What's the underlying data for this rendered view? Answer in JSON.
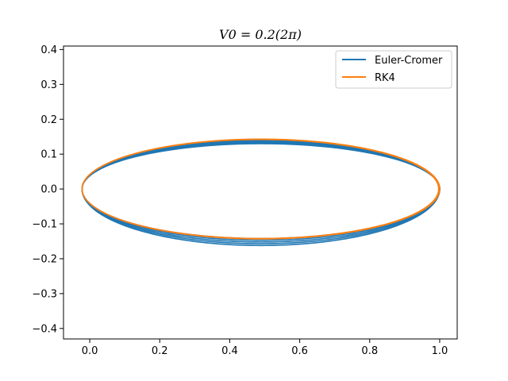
{
  "chart_data": {
    "type": "line",
    "title": "V0 = 0.2(2π)",
    "xlabel": "",
    "ylabel": "",
    "xlim": [
      -0.075,
      1.05
    ],
    "ylim": [
      -0.43,
      0.41
    ],
    "xticks": [
      0.0,
      0.2,
      0.4,
      0.6,
      0.8,
      1.0
    ],
    "xtick_labels": [
      "0.0",
      "0.2",
      "0.4",
      "0.6",
      "0.8",
      "1.0"
    ],
    "yticks": [
      -0.4,
      -0.3,
      -0.2,
      -0.1,
      0.0,
      0.1,
      0.2,
      0.3,
      0.4
    ],
    "ytick_labels": [
      "−0.4",
      "−0.3",
      "−0.2",
      "−0.1",
      "0.0",
      "0.1",
      "0.2",
      "0.3",
      "0.4"
    ],
    "grid": false,
    "legend_position": "top-right",
    "series": [
      {
        "name": "Euler-Cromer",
        "color": "#1f77b4",
        "orbits": [
          {
            "x_min": -0.022,
            "x_max": 1.0,
            "y_min": -0.142,
            "y_max": 0.142
          },
          {
            "x_min": -0.022,
            "x_max": 1.0,
            "y_min": -0.147,
            "y_max": 0.139
          },
          {
            "x_min": -0.022,
            "x_max": 1.0,
            "y_min": -0.152,
            "y_max": 0.136
          },
          {
            "x_min": -0.022,
            "x_max": 1.0,
            "y_min": -0.157,
            "y_max": 0.133
          },
          {
            "x_min": -0.022,
            "x_max": 1.0,
            "y_min": -0.162,
            "y_max": 0.13
          }
        ]
      },
      {
        "name": "RK4",
        "color": "#ff7f0e",
        "orbits": [
          {
            "x_min": -0.022,
            "x_max": 1.0,
            "y_min": -0.143,
            "y_max": 0.143
          },
          {
            "x_min": -0.022,
            "x_max": 0.997,
            "y_min": -0.142,
            "y_max": 0.142
          }
        ]
      }
    ]
  }
}
